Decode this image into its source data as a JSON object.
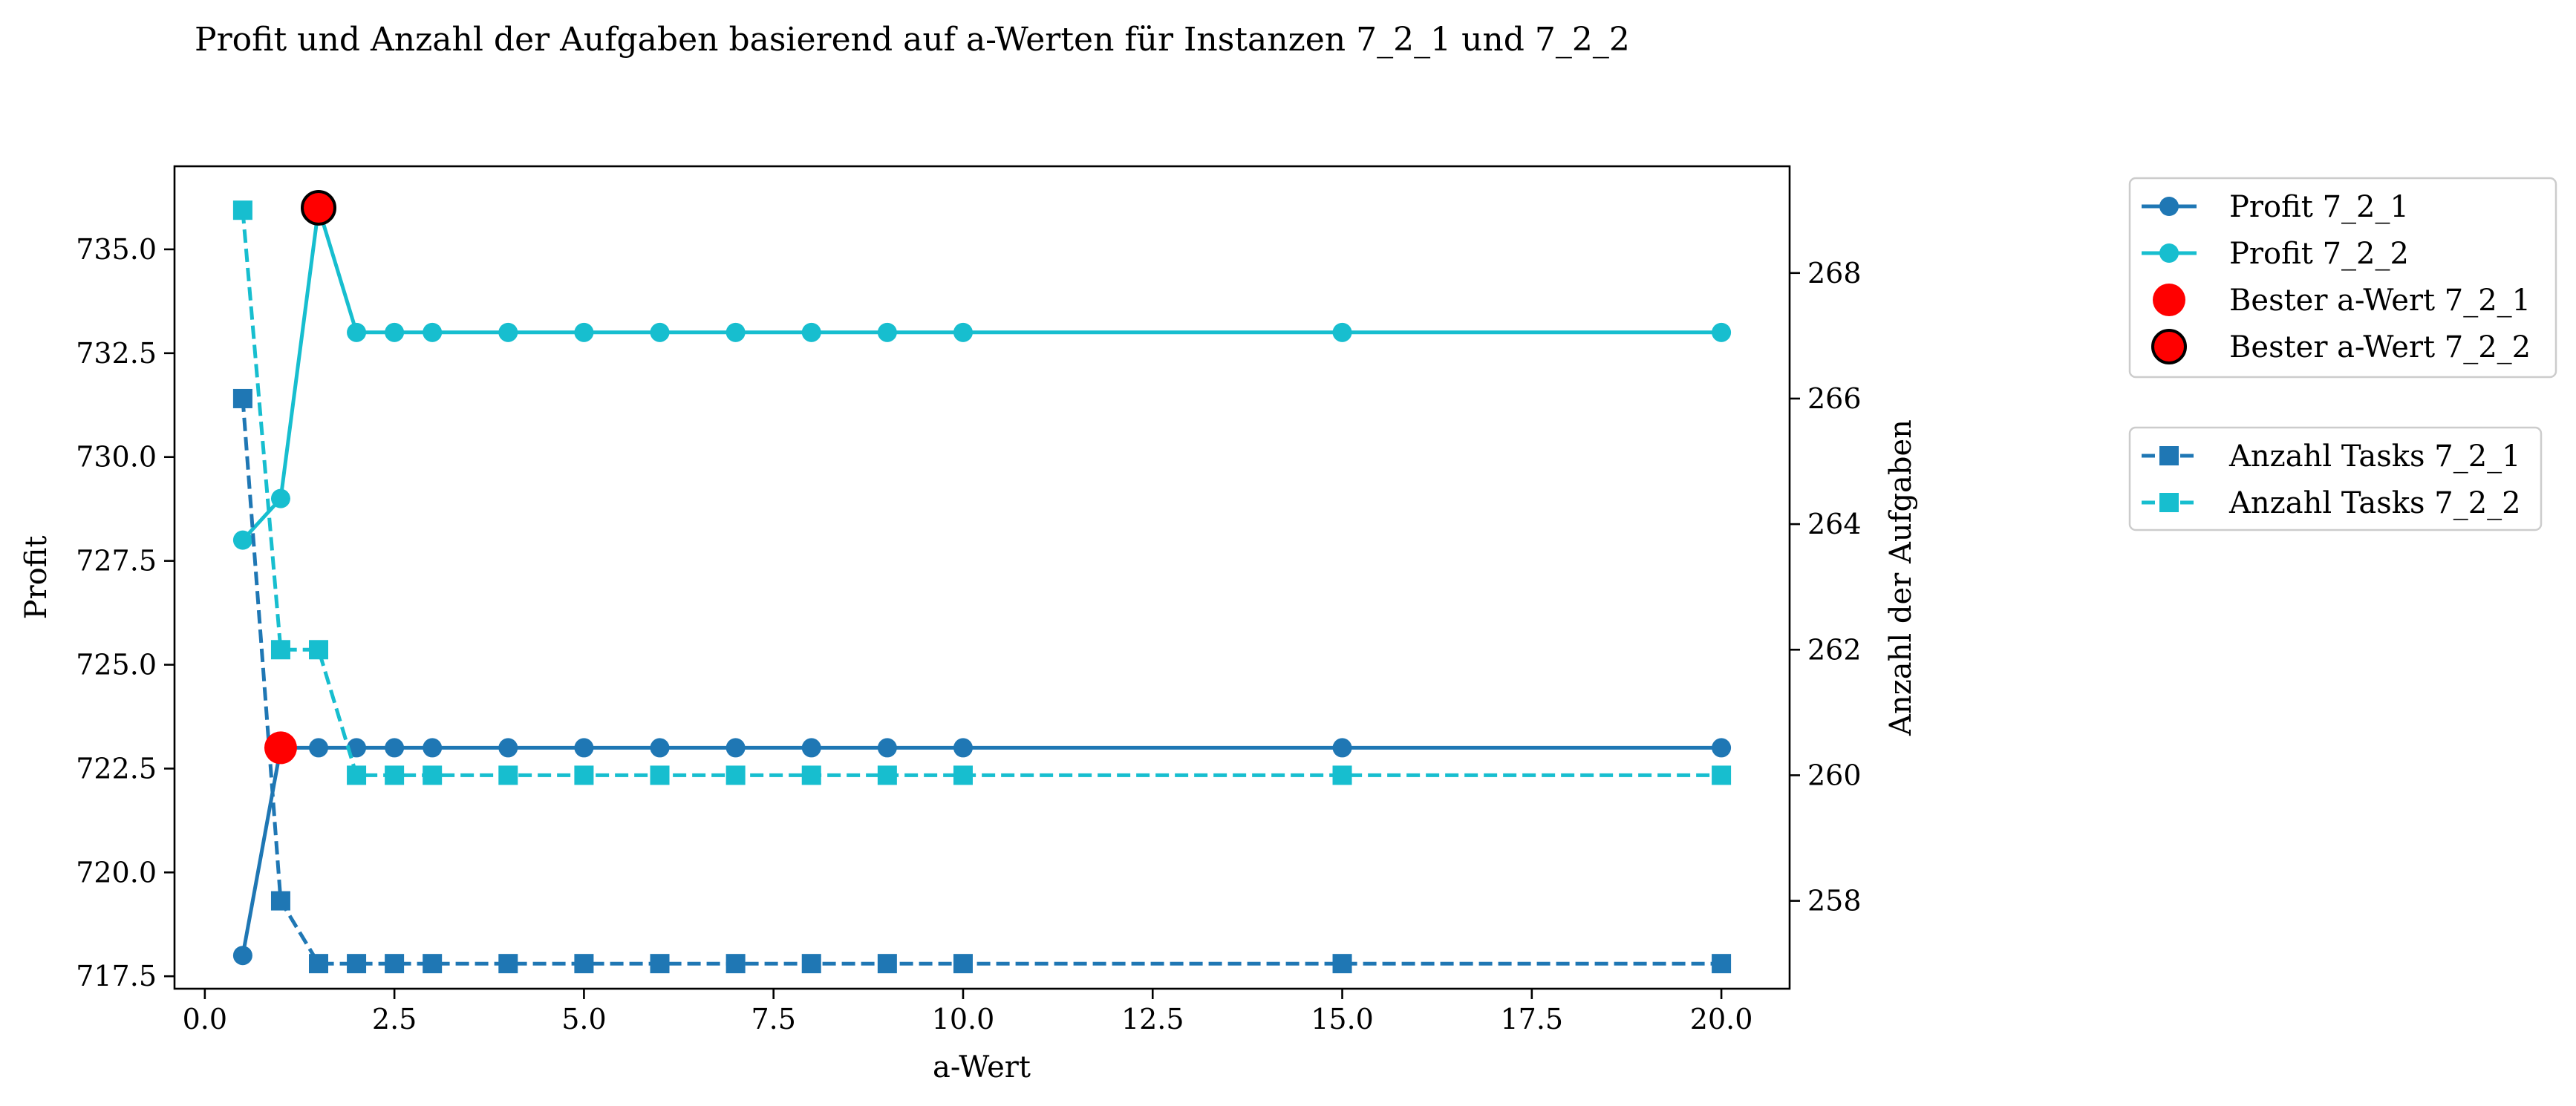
{
  "chart_data": {
    "type": "line",
    "title": "Profit und Anzahl der Aufgaben basierend auf a-Werten für Instanzen 7_2_1 und 7_2_2",
    "xlabel": "a-Wert",
    "ylabel": "Profit",
    "ylabel_right": "Anzahl der Aufgaben",
    "xlim": [
      -0.4,
      20.9
    ],
    "ylim": [
      717.2,
      737.0
    ],
    "ylim_right": [
      256.6,
      269.7
    ],
    "x_ticks": [
      "0.0",
      "2.5",
      "5.0",
      "7.5",
      "10.0",
      "12.5",
      "15.0",
      "17.5",
      "20.0"
    ],
    "y_ticks": [
      "717.5",
      "720.0",
      "722.5",
      "725.0",
      "727.5",
      "730.0",
      "732.5",
      "735.0"
    ],
    "y_ticks_right": [
      "258",
      "260",
      "262",
      "264",
      "266",
      "268"
    ],
    "grid": false,
    "x": [
      0.5,
      1,
      1.5,
      2,
      2.5,
      3,
      4,
      5,
      6,
      7,
      8,
      9,
      10,
      15,
      20
    ],
    "series": [
      {
        "name": "Profit 7_2_1",
        "axis": "left",
        "marker": "circle",
        "linestyle": "solid",
        "color": "#1f77b4",
        "values": [
          718,
          723,
          723,
          723,
          723,
          723,
          723,
          723,
          723,
          723,
          723,
          723,
          723,
          723,
          723
        ]
      },
      {
        "name": "Profit 7_2_2",
        "axis": "left",
        "marker": "circle",
        "linestyle": "solid",
        "color": "#17becf",
        "values": [
          728,
          729,
          736,
          733,
          733,
          733,
          733,
          733,
          733,
          733,
          733,
          733,
          733,
          733,
          733
        ]
      },
      {
        "name": "Anzahl Tasks 7_2_1",
        "axis": "right",
        "marker": "square",
        "linestyle": "dashed",
        "color": "#1f77b4",
        "values": [
          266,
          258,
          257,
          257,
          257,
          257,
          257,
          257,
          257,
          257,
          257,
          257,
          257,
          257,
          257
        ]
      },
      {
        "name": "Anzahl Tasks 7_2_2",
        "axis": "right",
        "marker": "square",
        "linestyle": "dashed",
        "color": "#17becf",
        "values": [
          269,
          262,
          262,
          260,
          260,
          260,
          260,
          260,
          260,
          260,
          260,
          260,
          260,
          260,
          260
        ]
      }
    ],
    "highlights": [
      {
        "name": "Bester a-Wert 7_2_1",
        "x": 1,
        "y": 723,
        "color": "#ff0000",
        "edge": "none"
      },
      {
        "name": "Bester a-Wert 7_2_2",
        "x": 1.5,
        "y": 736,
        "color": "#ff0000",
        "edge": "#000000"
      }
    ],
    "legends": [
      {
        "placement": "outside-right-top",
        "entries": [
          "Profit 7_2_1",
          "Profit 7_2_2",
          "Bester a-Wert 7_2_1",
          "Bester a-Wert 7_2_2"
        ]
      },
      {
        "placement": "outside-right-below",
        "entries": [
          "Anzahl Tasks 7_2_1",
          "Anzahl Tasks 7_2_2"
        ]
      }
    ]
  }
}
